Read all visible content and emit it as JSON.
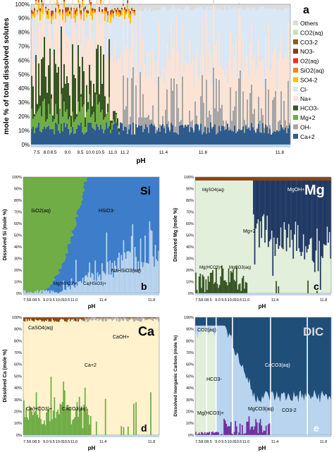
{
  "colors": {
    "others": "#dcdcdc",
    "co2": "#c5e0b4",
    "co3": "#8b5a2b",
    "no3": "#7f3f1f",
    "o2": "#ff2a1a",
    "sio2": "#ff7f1f",
    "so4": "#ffc000",
    "cl": "#dae7f4",
    "na": "#fbe3d6",
    "hco3": "#375623",
    "mg": "#70ad47",
    "oh": "#a6a6a6",
    "ca": "#2e5b8e",
    "sio2b": "#70ad47",
    "hsio3": "#3d7dc9",
    "nahsio3": "#b8d4ee",
    "mgoh": "#203864",
    "mg2": "#e2efda",
    "caso4": "#8b4513",
    "caoh": "#aeaeae",
    "ca2": "#fff2cc",
    "caco3": "#70ad47",
    "dic_co2": "#e2efda",
    "dic_hco3": "#b8d4ee",
    "dic_caco3": "#1f4e79",
    "dic_mgco3": "#7030a0",
    "dic_co3": "#bdd7ee"
  },
  "panel_a": {
    "letter": "a",
    "ylabel": "mole % of total dissolved solutes",
    "xlabel": "pH",
    "yticks": [
      "0%",
      "10%",
      "20%",
      "30%",
      "40%",
      "50%",
      "60%",
      "70%",
      "80%",
      "90%",
      "100%"
    ],
    "xticks": [
      "7.5",
      "8.0",
      "8.5",
      "9.0",
      "9.5",
      "10.0",
      "10.5",
      "11.0",
      "11.2",
      "11.4",
      "11.6",
      "11.8"
    ],
    "legend": [
      {
        "label": "Others",
        "key": "others"
      },
      {
        "label": "CO2(aq)",
        "key": "co2"
      },
      {
        "label": "CO3-2",
        "key": "co3"
      },
      {
        "label": "NO3-",
        "key": "no3"
      },
      {
        "label": "O2(aq)",
        "key": "o2"
      },
      {
        "label": "SiO2(aq)",
        "key": "sio2"
      },
      {
        "label": "SO4-2",
        "key": "so4"
      },
      {
        "label": "Cl-",
        "key": "cl"
      },
      {
        "label": "Na+",
        "key": "na"
      },
      {
        "label": "HCO3-",
        "key": "hco3"
      },
      {
        "label": "Mg+2",
        "key": "mg"
      },
      {
        "label": "OH-",
        "key": "oh"
      },
      {
        "label": "Ca+2",
        "key": "ca"
      }
    ]
  },
  "panel_b": {
    "letter": "b",
    "title": "Si",
    "ylabel": "Dissolved Si (mole %)",
    "xlabel": "pH",
    "xticks": [
      "7.5",
      "8.0",
      "8.5",
      "9.0",
      "9.5",
      "10.0",
      "10.5",
      "11.0",
      "11.4",
      "11.8"
    ],
    "labels": [
      "SiO2(aq)",
      "HSiO3-",
      "NaHSiO3(aq)",
      "Mg(HSiO3)+",
      "Ca(HSiO3)+"
    ]
  },
  "panel_c": {
    "letter": "c",
    "title": "Mg",
    "ylabel": "Dissolved Mg (mole %)",
    "xlabel": "pH",
    "xticks": [
      "7.5",
      "8.0",
      "8.5",
      "9.0",
      "9.5",
      "10.0",
      "10.5",
      "11.0",
      "11.4",
      "11.8"
    ],
    "labels": [
      "MgSO4(aq)",
      "MgOH+",
      "Mg+2",
      "Mg(HCO3)+",
      "MgCO3(aq)"
    ]
  },
  "panel_d": {
    "letter": "d",
    "title": "Ca",
    "ylabel": "Dissolved Ca (mole %)",
    "xlabel": "pH",
    "xticks": [
      "7.5",
      "8.0",
      "8.5",
      "9.0",
      "9.5",
      "10.0",
      "10.5",
      "11.0",
      "11.4",
      "11.8"
    ],
    "labels": [
      "CaSO4(aq)",
      "CaOH+",
      "Ca+2",
      "Ca(HCO3)+",
      "CaCO3(aq)"
    ]
  },
  "panel_e": {
    "letter": "e",
    "title": "DIC",
    "ylabel": "Dissolved Inorganic Carbon (mole %)",
    "xlabel": "pH",
    "xticks": [
      "7.5",
      "8.0",
      "8.5",
      "9.0",
      "9.5",
      "10.0",
      "10.5",
      "11.0",
      "11.4",
      "11.8"
    ],
    "labels": [
      "CO2(aq)",
      "CaCO3(aq)",
      "HCO3-",
      "Mg(HCO3)+",
      "MgCO3(aq)",
      "CO3-2"
    ]
  },
  "small_yticks": [
    "0%",
    "10%",
    "20%",
    "30%",
    "40%",
    "50%",
    "60%",
    "70%",
    "80%",
    "90%",
    "100%"
  ],
  "chart_data": [
    {
      "type": "bar",
      "stacked": true,
      "panel": "a",
      "x_label": "pH",
      "y_label": "mole % of total dissolved solutes",
      "ylim": [
        0,
        100
      ],
      "series_approx": [
        {
          "name": "Ca+2",
          "pH_range": [
            7.5,
            11.8
          ],
          "values_percent_range": [
            5,
            20
          ]
        },
        {
          "name": "OH-",
          "pH_range": [
            10.8,
            11.8
          ],
          "values_percent_range": [
            0,
            50
          ]
        },
        {
          "name": "Mg+2",
          "pH_range": [
            7.5,
            10.5
          ],
          "values_percent_range": [
            0,
            25
          ]
        },
        {
          "name": "HCO3-",
          "pH_range": [
            7.5,
            10.5
          ],
          "values_percent_range": [
            0,
            50
          ]
        },
        {
          "name": "Na+",
          "pH_range": [
            7.5,
            11.8
          ],
          "values_percent_range": [
            30,
            60
          ]
        },
        {
          "name": "Cl-",
          "pH_range": [
            7.5,
            11.8
          ],
          "values_percent_range": [
            15,
            40
          ]
        }
      ]
    },
    {
      "type": "bar",
      "stacked": true,
      "panel": "b",
      "title": "Si",
      "y_label": "Dissolved Si (mole %)",
      "x_label": "pH",
      "ylim": [
        0,
        100
      ]
    },
    {
      "type": "bar",
      "stacked": true,
      "panel": "c",
      "title": "Mg",
      "y_label": "Dissolved Mg (mole %)",
      "x_label": "pH",
      "ylim": [
        0,
        100
      ]
    },
    {
      "type": "bar",
      "stacked": true,
      "panel": "d",
      "title": "Ca",
      "y_label": "Dissolved Ca (mole %)",
      "x_label": "pH",
      "ylim": [
        0,
        100
      ]
    },
    {
      "type": "bar",
      "stacked": true,
      "panel": "e",
      "title": "DIC",
      "y_label": "Dissolved Inorganic Carbon (mole %)",
      "x_label": "pH",
      "ylim": [
        0,
        100
      ]
    }
  ]
}
